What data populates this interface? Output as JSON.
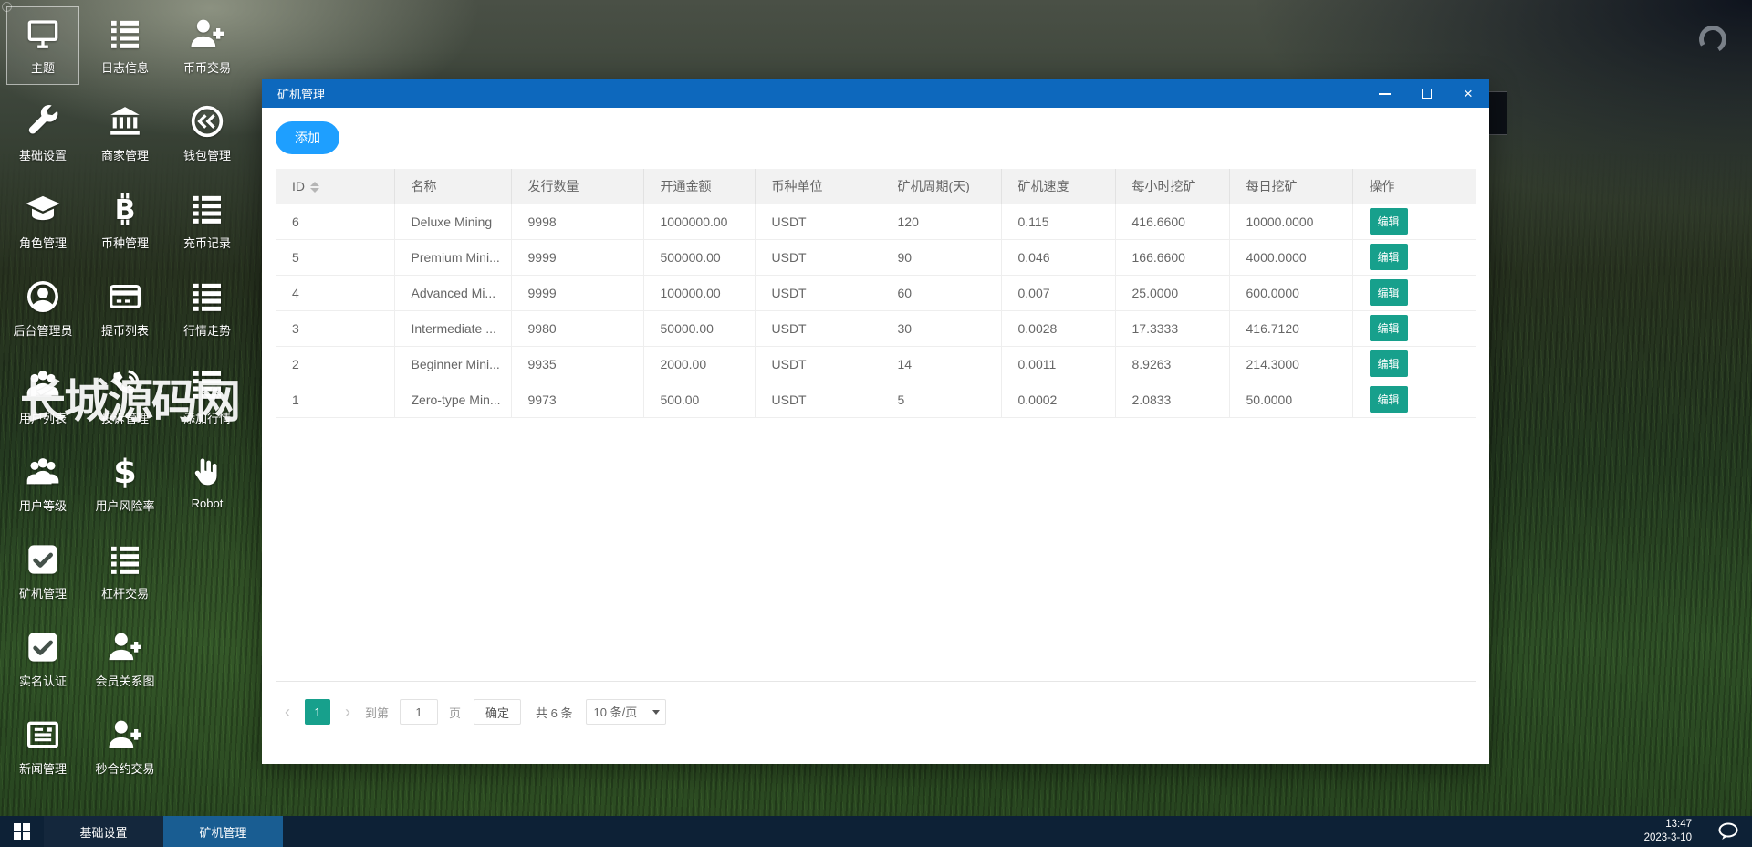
{
  "desktop": {
    "watermark": "长城源码网",
    "icons": [
      {
        "label": "主题",
        "icon": "monitor-icon",
        "selected": true
      },
      {
        "label": "日志信息",
        "icon": "list-icon"
      },
      {
        "label": "币币交易",
        "icon": "user-plus-icon"
      },
      {
        "label": "基础设置",
        "icon": "wrench-icon"
      },
      {
        "label": "商家管理",
        "icon": "bank-icon"
      },
      {
        "label": "钱包管理",
        "icon": "wallet-icon"
      },
      {
        "label": "角色管理",
        "icon": "graduation-cap-icon"
      },
      {
        "label": "币种管理",
        "icon": "bitcoin-icon"
      },
      {
        "label": "充币记录",
        "icon": "list-icon"
      },
      {
        "label": "后台管理员",
        "icon": "admin-circle-icon"
      },
      {
        "label": "提币列表",
        "icon": "bank-card-icon"
      },
      {
        "label": "行情走势",
        "icon": "list-icon"
      },
      {
        "label": "用户列表",
        "icon": "users-icon"
      },
      {
        "label": "投诉管理",
        "icon": "phone-icon"
      },
      {
        "label": "添加行情",
        "icon": "list-icon"
      },
      {
        "label": "用户等级",
        "icon": "users-icon"
      },
      {
        "label": "用户风险率",
        "icon": "dollar-icon"
      },
      {
        "label": "Robot",
        "icon": "robot-icon"
      },
      {
        "label": "矿机管理",
        "icon": "check-square-icon"
      },
      {
        "label": "杠杆交易",
        "icon": "list-icon"
      },
      {
        "spacer": true
      },
      {
        "label": "实名认证",
        "icon": "check-square-icon"
      },
      {
        "label": "会员关系图",
        "icon": "user-plus-icon"
      },
      {
        "spacer": true
      },
      {
        "label": "新闻管理",
        "icon": "news-icon"
      },
      {
        "label": "秒合约交易",
        "icon": "user-plus-icon"
      }
    ]
  },
  "window": {
    "title": "矿机管理",
    "toolbar": {
      "add_label": "添加"
    },
    "table": {
      "columns": [
        "ID",
        "名称",
        "发行数量",
        "开通金额",
        "币种单位",
        "矿机周期(天)",
        "矿机速度",
        "每小时挖矿",
        "每日挖矿",
        "操作"
      ],
      "edit_label": "编辑",
      "rows": [
        {
          "id": "6",
          "name": "Deluxe Mining",
          "issue": "9998",
          "amount": "1000000.00",
          "unit": "USDT",
          "period": "120",
          "speed": "0.115",
          "hourly": "416.6600",
          "daily": "10000.0000"
        },
        {
          "id": "5",
          "name": "Premium Mini...",
          "issue": "9999",
          "amount": "500000.00",
          "unit": "USDT",
          "period": "90",
          "speed": "0.046",
          "hourly": "166.6600",
          "daily": "4000.0000"
        },
        {
          "id": "4",
          "name": "Advanced Mi...",
          "issue": "9999",
          "amount": "100000.00",
          "unit": "USDT",
          "period": "60",
          "speed": "0.007",
          "hourly": "25.0000",
          "daily": "600.0000"
        },
        {
          "id": "3",
          "name": "Intermediate ...",
          "issue": "9980",
          "amount": "50000.00",
          "unit": "USDT",
          "period": "30",
          "speed": "0.0028",
          "hourly": "17.3333",
          "daily": "416.7120"
        },
        {
          "id": "2",
          "name": "Beginner Mini...",
          "issue": "9935",
          "amount": "2000.00",
          "unit": "USDT",
          "period": "14",
          "speed": "0.0011",
          "hourly": "8.9263",
          "daily": "214.3000"
        },
        {
          "id": "1",
          "name": "Zero-type Min...",
          "issue": "9973",
          "amount": "500.00",
          "unit": "USDT",
          "period": "5",
          "speed": "0.0002",
          "hourly": "2.0833",
          "daily": "50.0000"
        }
      ]
    },
    "pagination": {
      "prev": "‹",
      "next": "›",
      "current_page": "1",
      "goto_label": "到第",
      "goto_value": "1",
      "page_label": "页",
      "confirm_label": "确定",
      "total_label": "共 6 条",
      "per_page": "10 条/页"
    },
    "colors": {
      "titlebar": "#0d68bd",
      "add_button": "#1E9FFF",
      "accent_teal": "#17a08c"
    }
  },
  "taskbar": {
    "items": [
      {
        "label": "基础设置",
        "active": false
      },
      {
        "label": "矿机管理",
        "active": true
      }
    ],
    "clock": {
      "time": "13:47",
      "date": "2023-3-10"
    }
  }
}
